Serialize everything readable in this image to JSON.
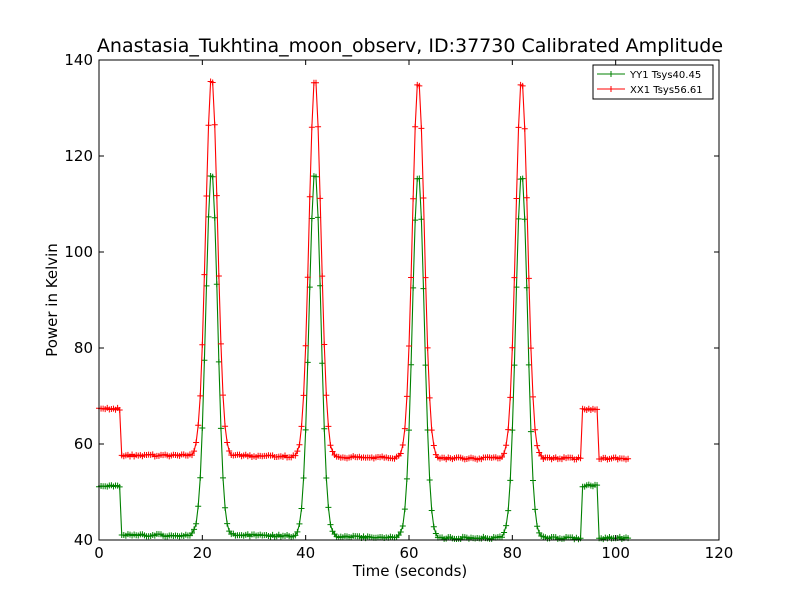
{
  "chart_data": {
    "type": "line",
    "title": "Anastasia_Tukhtina_moon_observ, ID:37730 Calibrated Amplitude",
    "xlabel": "Time (seconds)",
    "ylabel": "Power in Kelvin",
    "xlim": [
      0,
      120
    ],
    "ylim": [
      40,
      140
    ],
    "xticks": [
      "0",
      "20",
      "40",
      "60",
      "80",
      "100",
      "120"
    ],
    "yticks": [
      "40",
      "60",
      "80",
      "100",
      "120",
      "140"
    ],
    "grid": false,
    "legend_position": "top-right",
    "peak_centers": [
      21.8,
      41.8,
      61.8,
      81.8
    ],
    "series": [
      {
        "name": "YY1 Tsys40.45",
        "color": "#008000",
        "marker": "+",
        "cal_on_level": 51.3,
        "baseline": 41.0,
        "peak": 117.0,
        "peak_width_sigma": 1.15,
        "cal_intervals": [
          [
            0,
            4.1
          ],
          [
            93.5,
            96.6
          ]
        ],
        "data_range": [
          0,
          102.4
        ]
      },
      {
        "name": "XX1 Tsys56.61",
        "color": "#ff0000",
        "marker": "+",
        "cal_on_level": 67.3,
        "baseline": 57.6,
        "peak": 136.5,
        "peak_width_sigma": 1.15,
        "cal_intervals": [
          [
            0,
            4.1
          ],
          [
            93.5,
            96.6
          ]
        ],
        "data_range": [
          0,
          102.4
        ]
      }
    ]
  }
}
